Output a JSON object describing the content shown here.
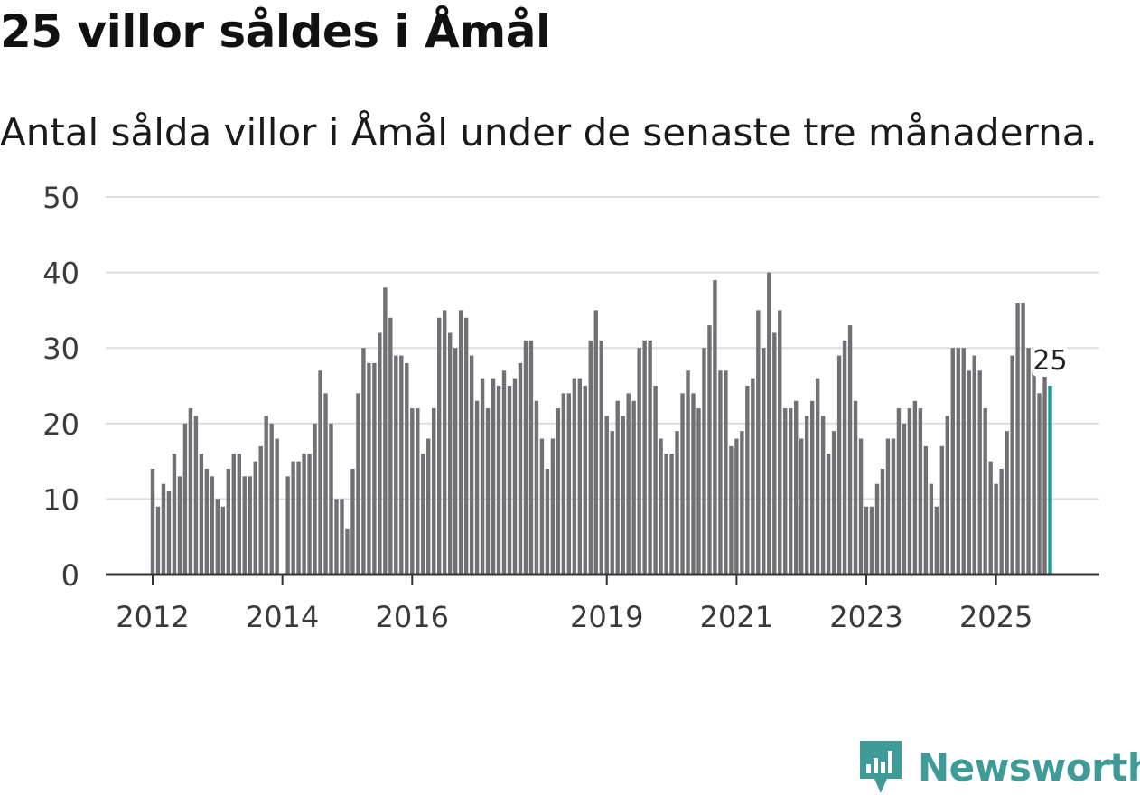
{
  "title": "25 villor såldes i Åmål",
  "subtitle": "Antal sålda villor i Åmål under de senaste tre månaderna.",
  "brand": {
    "name": "Newsworthy",
    "color": "#3f9b97"
  },
  "colors": {
    "bar": "#707075",
    "highlight": "#1a9c95",
    "grid": "#dddddd",
    "axis": "#333333"
  },
  "chart_data": {
    "type": "bar",
    "title": "25 villor såldes i Åmål",
    "subtitle": "Antal sålda villor i Åmål under de senaste tre månaderna.",
    "xlabel": "",
    "ylabel": "",
    "ylim": [
      0,
      50
    ],
    "yticks": [
      0,
      10,
      20,
      30,
      40,
      50
    ],
    "grid": true,
    "start": "2012-01",
    "x_ticks": [
      {
        "label": "2012",
        "index": 0
      },
      {
        "label": "2014",
        "index": 24
      },
      {
        "label": "2016",
        "index": 48
      },
      {
        "label": "2019",
        "index": 84
      },
      {
        "label": "2021",
        "index": 108
      },
      {
        "label": "2023",
        "index": 132
      },
      {
        "label": "2025",
        "index": 156
      }
    ],
    "values": [
      14,
      9,
      12,
      11,
      16,
      13,
      20,
      22,
      21,
      16,
      14,
      13,
      10,
      9,
      14,
      16,
      16,
      13,
      13,
      15,
      17,
      21,
      20,
      18,
      0,
      13,
      15,
      15,
      16,
      16,
      20,
      27,
      24,
      20,
      10,
      10,
      6,
      14,
      24,
      30,
      28,
      28,
      32,
      38,
      34,
      29,
      29,
      28,
      22,
      22,
      16,
      18,
      22,
      34,
      35,
      32,
      30,
      35,
      34,
      29,
      23,
      26,
      22,
      26,
      25,
      27,
      25,
      26,
      28,
      31,
      31,
      23,
      18,
      14,
      18,
      22,
      24,
      24,
      26,
      26,
      25,
      31,
      35,
      31,
      21,
      19,
      23,
      21,
      24,
      23,
      30,
      31,
      31,
      25,
      18,
      16,
      16,
      19,
      24,
      27,
      24,
      22,
      30,
      33,
      39,
      27,
      27,
      17,
      18,
      19,
      25,
      26,
      35,
      30,
      40,
      32,
      35,
      22,
      22,
      23,
      18,
      21,
      23,
      26,
      21,
      16,
      19,
      29,
      31,
      33,
      23,
      18,
      9,
      9,
      12,
      14,
      18,
      18,
      22,
      20,
      22,
      23,
      22,
      17,
      12,
      9,
      17,
      21,
      30,
      30,
      30,
      27,
      29,
      27,
      22,
      15,
      12,
      14,
      19,
      29,
      36,
      36,
      30,
      27,
      24,
      27,
      25
    ],
    "highlight_last": true,
    "last_label": "25"
  }
}
